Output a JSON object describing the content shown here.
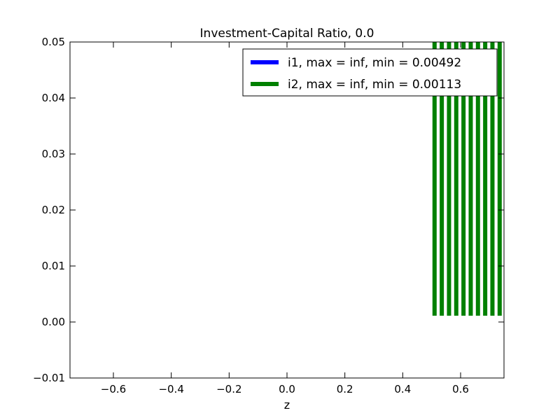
{
  "chart_data": {
    "type": "line",
    "title": "Investment-Capital Ratio, 0.0",
    "xlabel": "z",
    "ylabel": "",
    "xlim": [
      -0.75,
      0.75
    ],
    "ylim": [
      -0.01,
      0.05
    ],
    "xticks": [
      -0.6,
      -0.4,
      -0.2,
      0.0,
      0.2,
      0.4,
      0.6
    ],
    "xtick_labels": [
      "−0.6",
      "−0.4",
      "−0.2",
      "0.0",
      "0.2",
      "0.4",
      "0.6"
    ],
    "yticks": [
      -0.01,
      0.0,
      0.01,
      0.02,
      0.03,
      0.04,
      0.05
    ],
    "ytick_labels": [
      "−0.01",
      "0.00",
      "0.01",
      "0.02",
      "0.03",
      "0.04",
      "0.05"
    ],
    "grid": false,
    "legend_position": "top-right",
    "series": [
      {
        "name": "i1, max = inf, min = 0.00492",
        "color": "#0000ff",
        "vertical_segments": []
      },
      {
        "name": "i2, max = inf, min = 0.00113",
        "color": "#008000",
        "vertical_segments": [
          {
            "x": 0.51,
            "y0": 0.00113,
            "y1": 0.05
          },
          {
            "x": 0.535,
            "y0": 0.00113,
            "y1": 0.05
          },
          {
            "x": 0.56,
            "y0": 0.00113,
            "y1": 0.05
          },
          {
            "x": 0.585,
            "y0": 0.00113,
            "y1": 0.05
          },
          {
            "x": 0.61,
            "y0": 0.00113,
            "y1": 0.05
          },
          {
            "x": 0.635,
            "y0": 0.00113,
            "y1": 0.05
          },
          {
            "x": 0.66,
            "y0": 0.00113,
            "y1": 0.05
          },
          {
            "x": 0.685,
            "y0": 0.00113,
            "y1": 0.05
          },
          {
            "x": 0.71,
            "y0": 0.00113,
            "y1": 0.05
          },
          {
            "x": 0.735,
            "y0": 0.00113,
            "y1": 0.05
          }
        ]
      }
    ]
  }
}
